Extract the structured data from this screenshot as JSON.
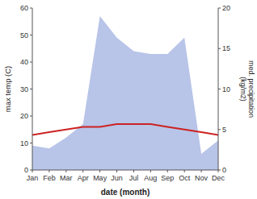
{
  "chart_data": {
    "type": "line",
    "categories": [
      "Jan",
      "Feb",
      "Mar",
      "Apr",
      "May",
      "Jun",
      "Jul",
      "Aug",
      "Sep",
      "Oct",
      "Nov",
      "Dec"
    ],
    "series": [
      {
        "type": "area",
        "color": "#b8c4e8",
        "values": [
          9,
          8,
          12,
          17,
          57,
          49,
          44,
          43,
          43,
          49,
          6,
          11
        ]
      },
      {
        "type": "line",
        "color": "#cc2222",
        "values": [
          13,
          14,
          15,
          16,
          16,
          17,
          17,
          17,
          16,
          15,
          14,
          13
        ]
      }
    ],
    "x_label": "date (month)",
    "y_label": "max temp (C)",
    "y2_label": "med. precipitation\n(kg/m2)",
    "ylim": [
      0,
      60
    ],
    "yticks": [
      0,
      10,
      20,
      30,
      40,
      50,
      60
    ],
    "y2lim": [
      0,
      20
    ],
    "y2ticks": [
      0,
      5,
      10,
      15,
      20
    ],
    "grid": false
  }
}
